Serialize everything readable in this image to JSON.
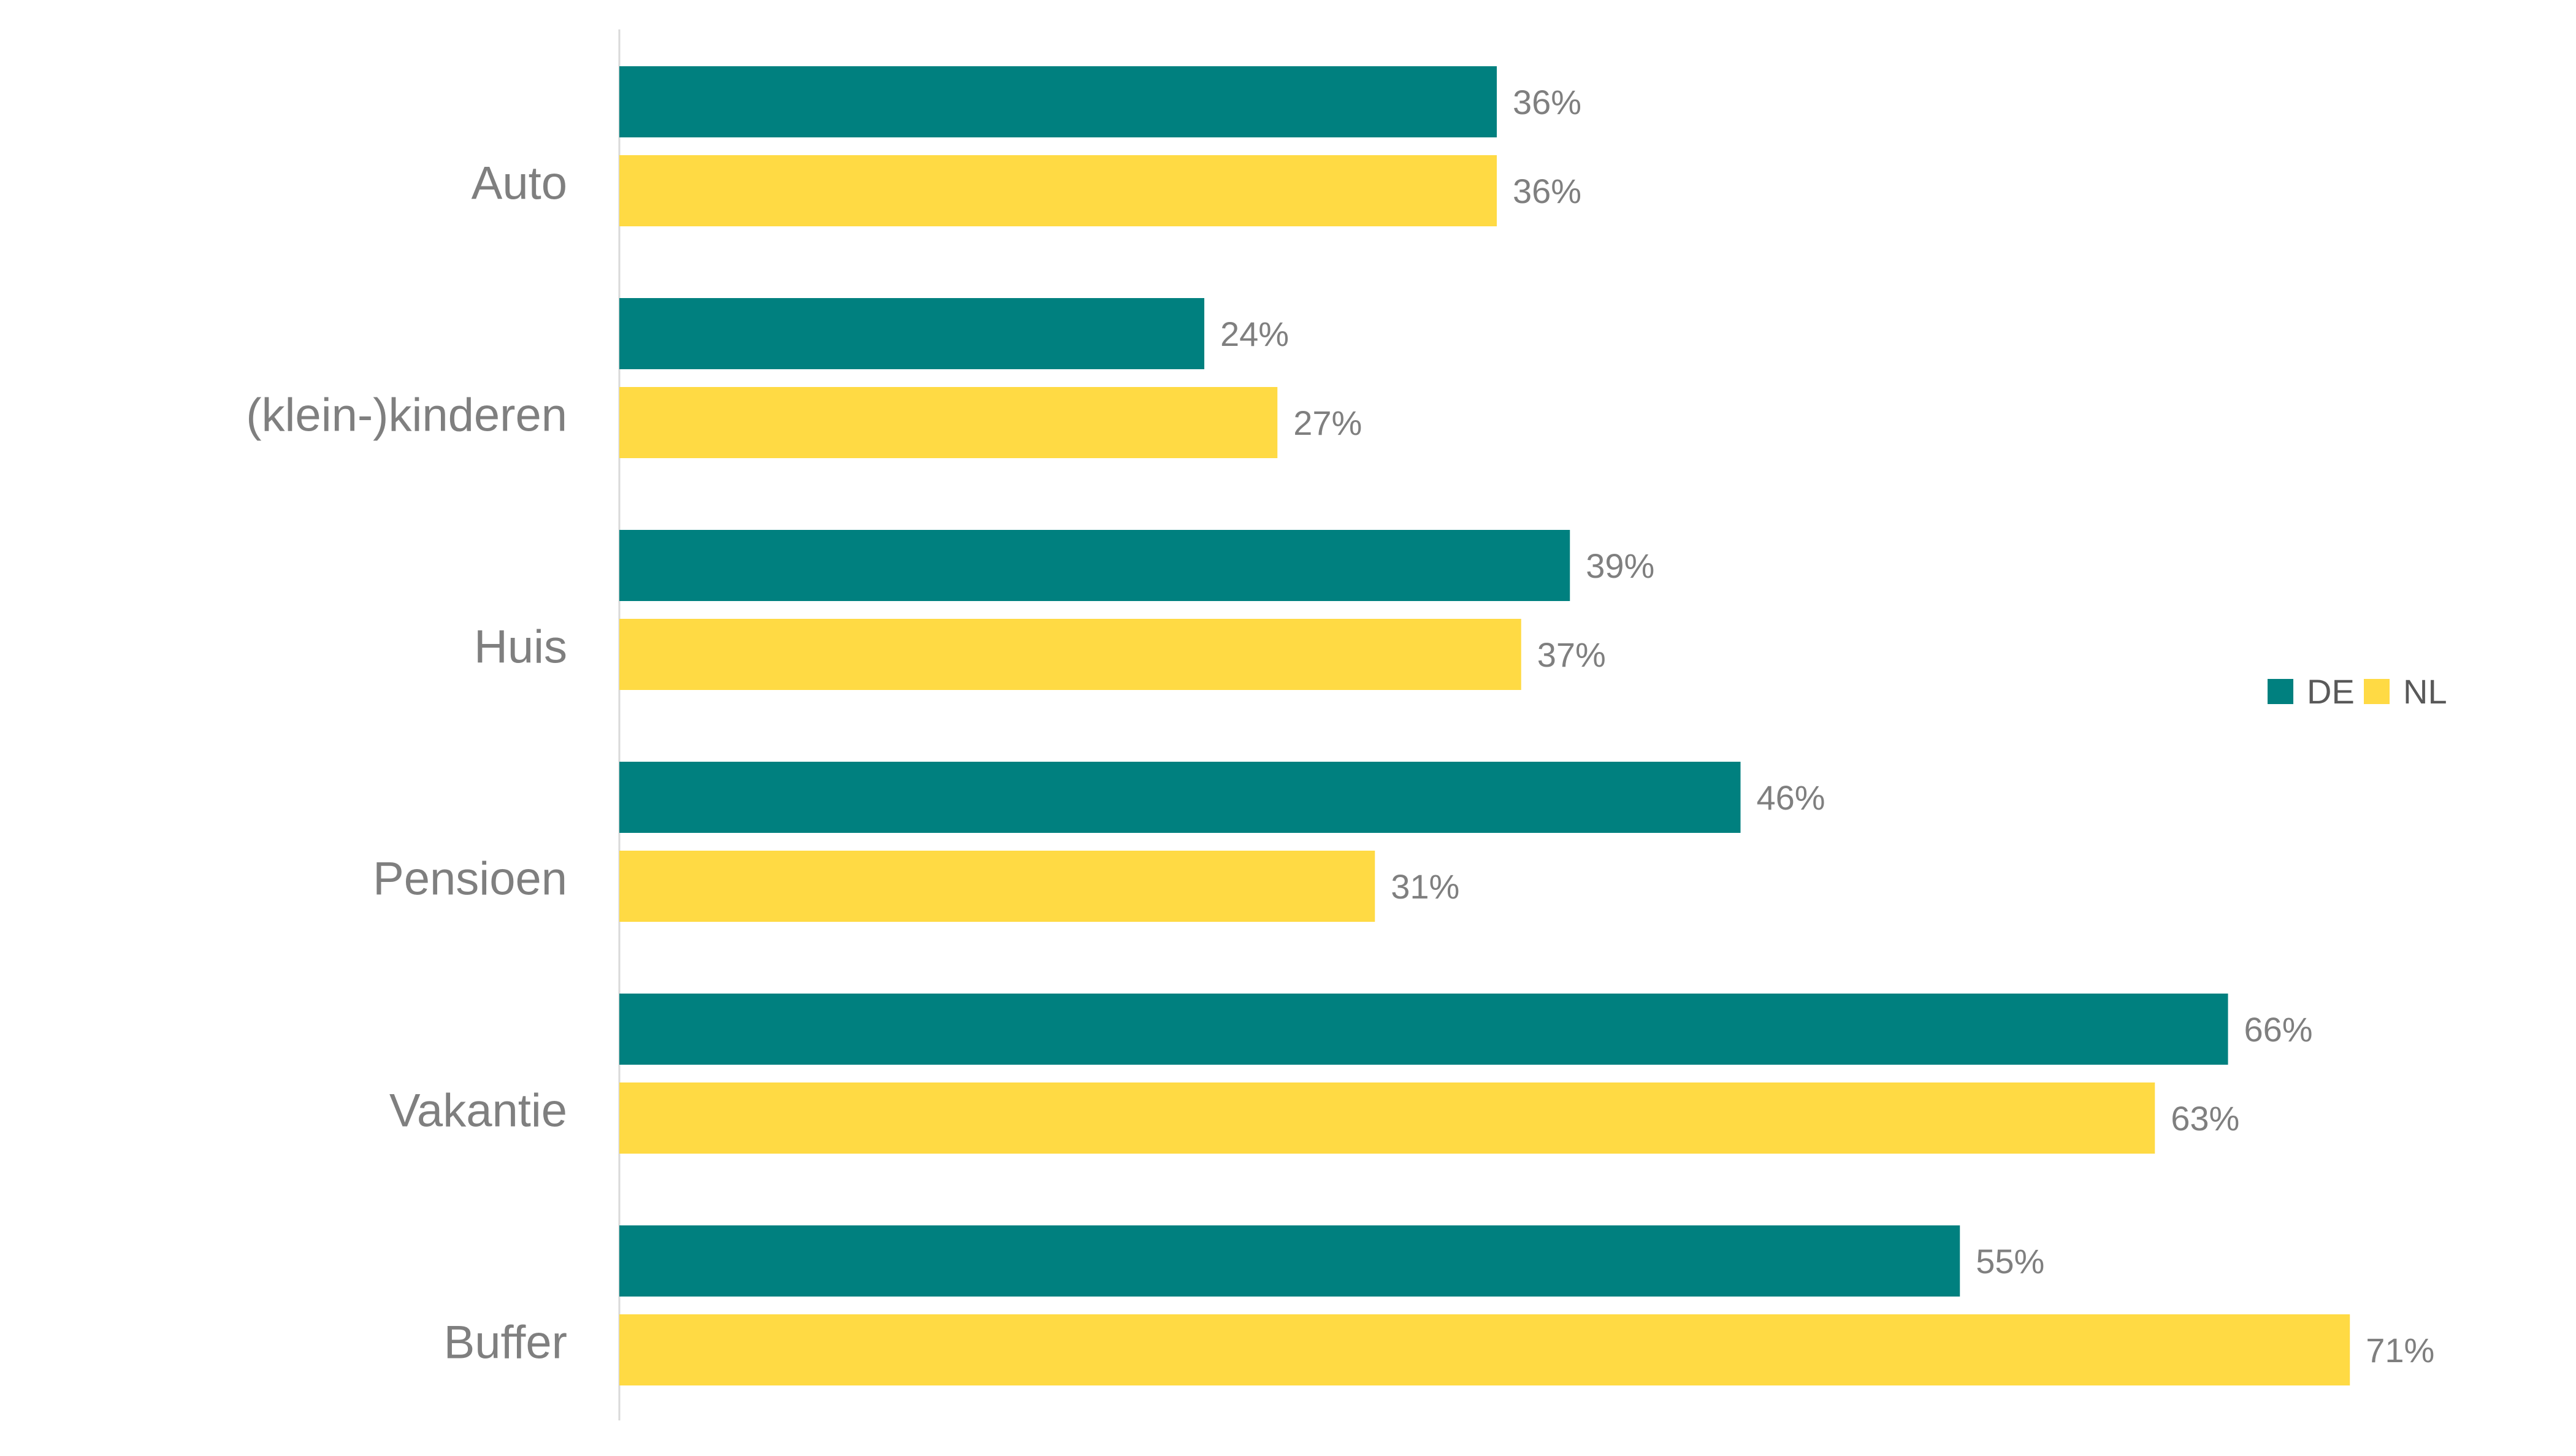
{
  "chart_data": {
    "type": "bar",
    "orientation": "horizontal",
    "title": "",
    "xlabel": "",
    "ylabel": "",
    "categories": [
      "Auto",
      "(klein-)kinderen",
      "Huis",
      "Pensioen",
      "Vakantie",
      "Buffer"
    ],
    "series": [
      {
        "name": "DE",
        "color": "#00807F",
        "values": [
          36,
          24,
          39,
          46,
          66,
          55
        ]
      },
      {
        "name": "NL",
        "color": "#FFDA44",
        "values": [
          36,
          27,
          37,
          31,
          63,
          71
        ]
      }
    ],
    "value_suffix": "%",
    "xlim": [
      0,
      100
    ],
    "grid": false,
    "legend_position": "right"
  }
}
